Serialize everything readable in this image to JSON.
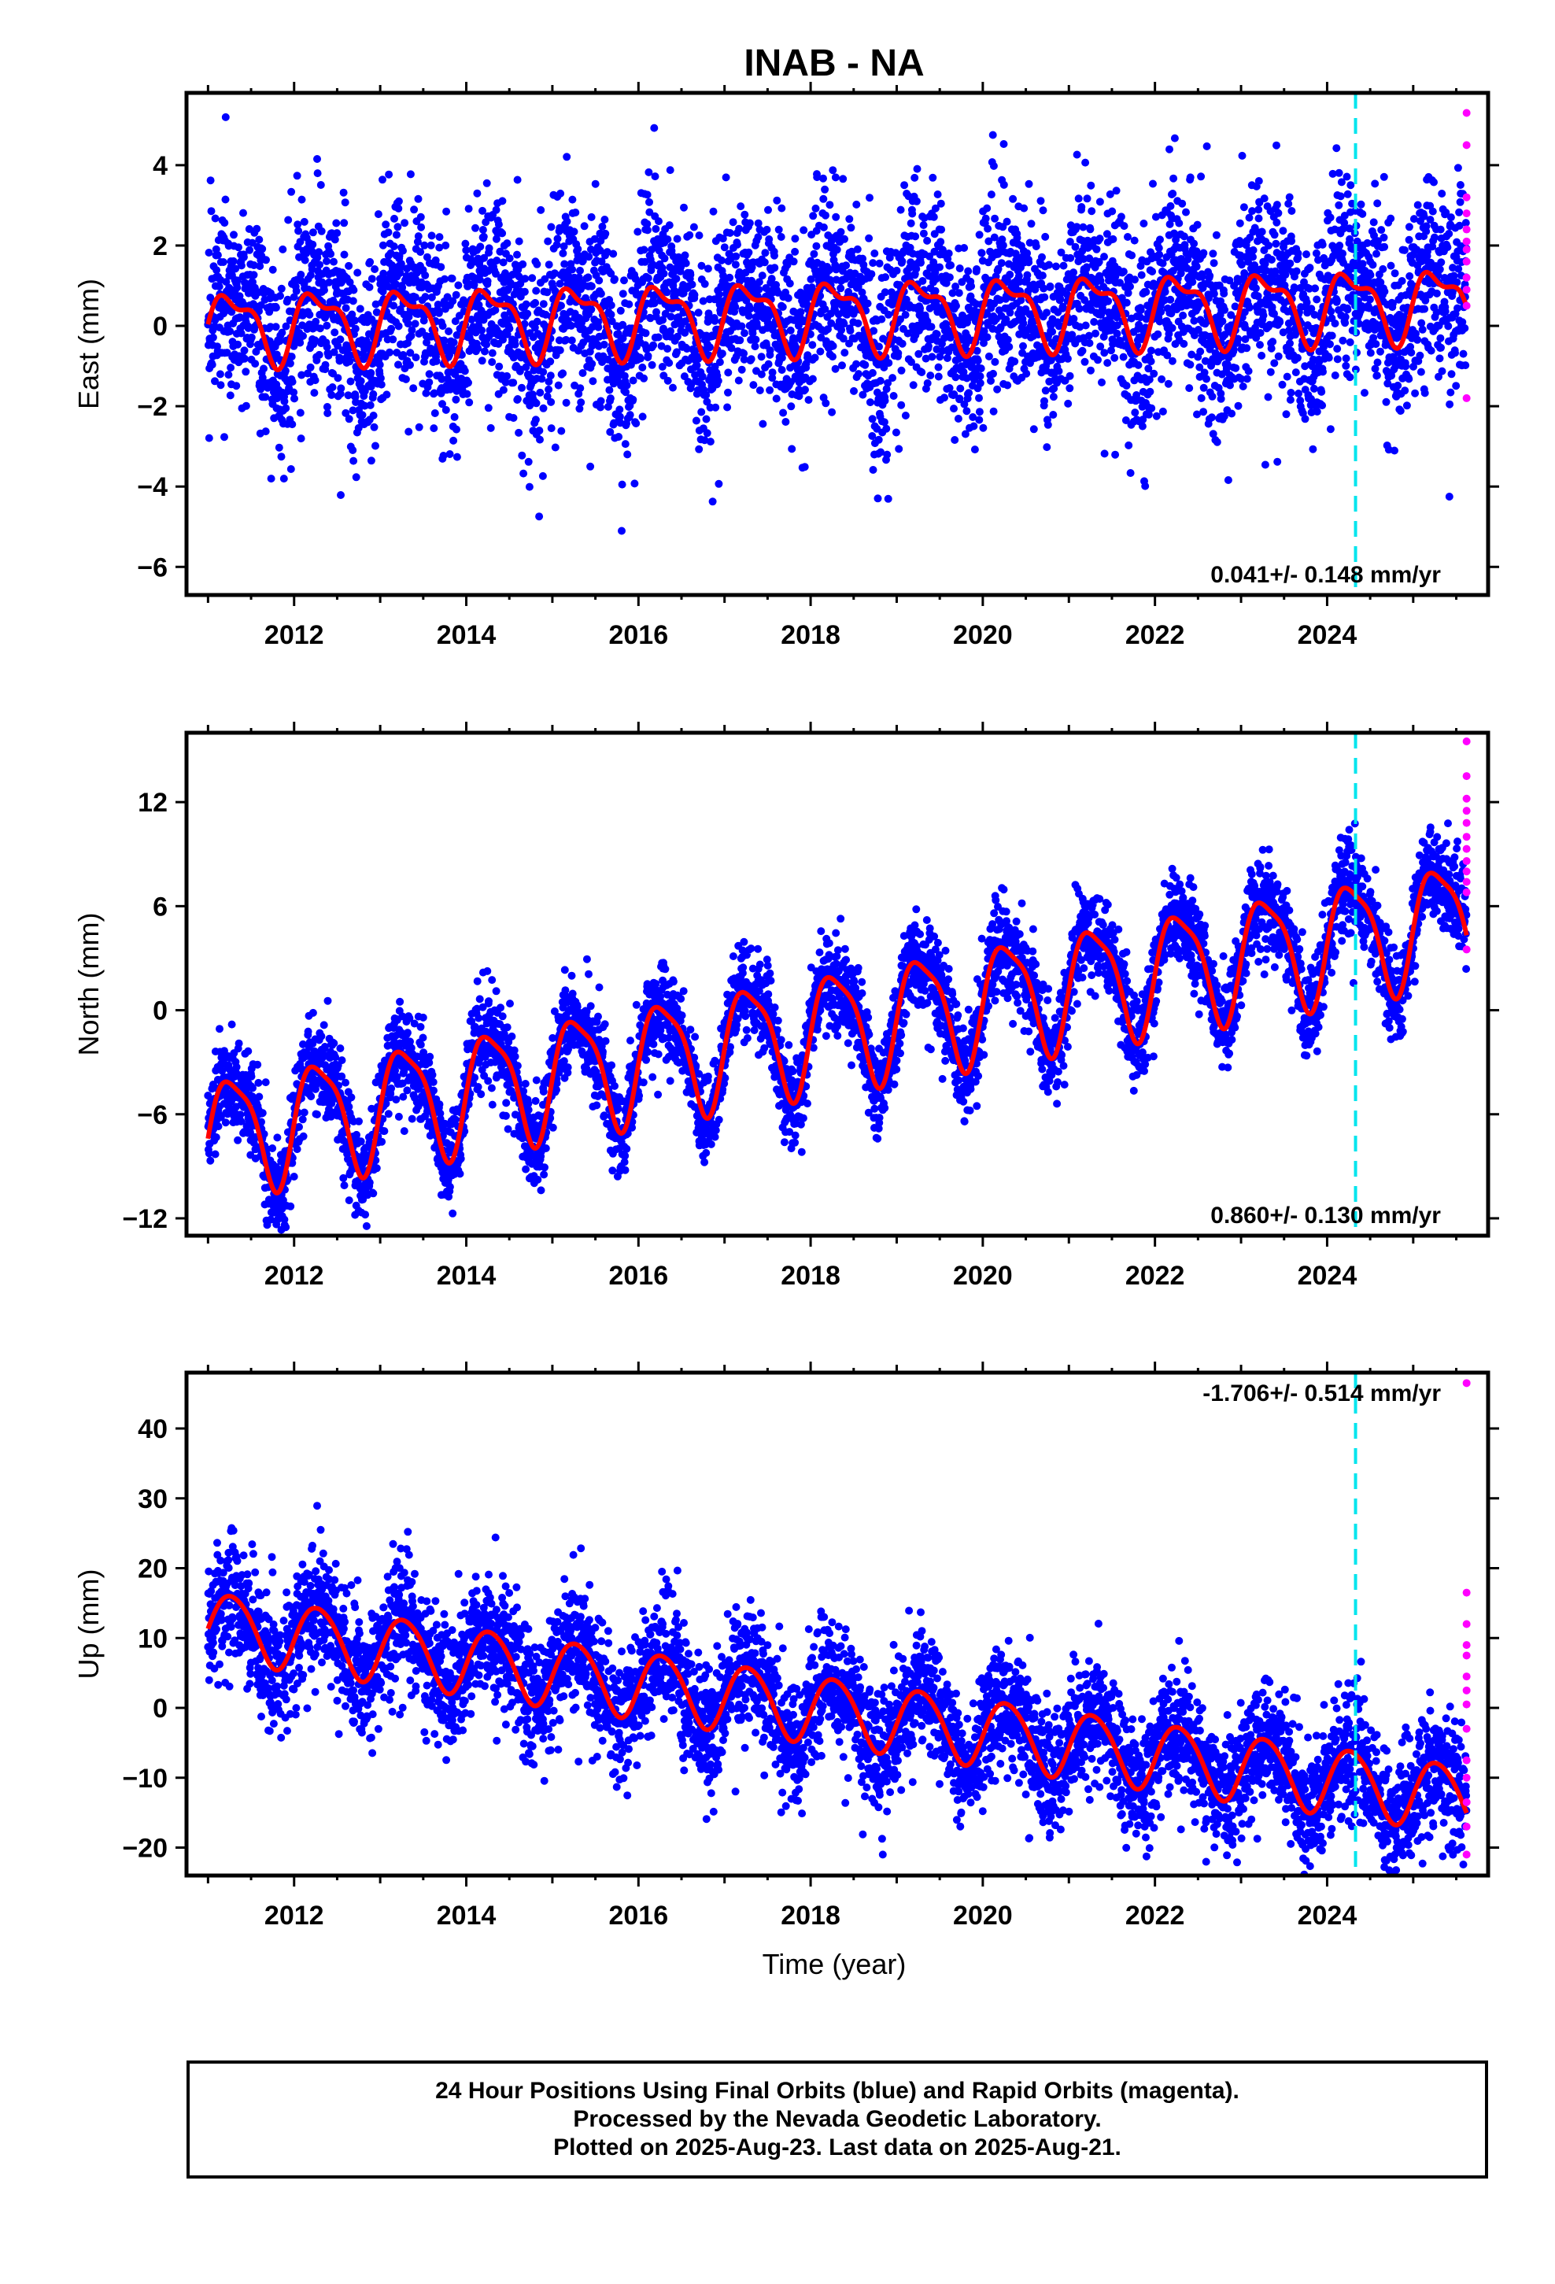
{
  "title": "INAB - NA",
  "colors": {
    "final_orbits": "#0000ff",
    "rapid_orbits": "#ff00ff",
    "model_fit": "#ff0000",
    "marker_line": "#00e5ee",
    "axes": "#000000"
  },
  "xlabel": "Time (year)",
  "footer": {
    "line1": "24 Hour Positions Using Final Orbits (blue) and Rapid Orbits (magenta).",
    "line2": "Processed by the Nevada Geodetic Laboratory.",
    "line3": "Plotted on 2025-Aug-23. Last data on 2025-Aug-21."
  },
  "chart_data": [
    {
      "type": "scatter",
      "component": "East",
      "ylabel": "East (mm)",
      "xlim": [
        2010.75,
        2025.87
      ],
      "ylim": [
        -6.7,
        5.8
      ],
      "xticks": [
        "2012",
        "2014",
        "2016",
        "2018",
        "2020",
        "2022",
        "2024"
      ],
      "yticks": [
        "4",
        "2",
        "0",
        "−2",
        "−4",
        "−6"
      ],
      "rate_label": "0.041+/- 0.148 mm/yr",
      "rate_mm_per_yr": 0.041,
      "rate_sigma": 0.148,
      "equipment_change_year": 2024.33,
      "grid": false,
      "series": [
        {
          "role": "final_orbits",
          "scatter_sd_mm": 1.2
        },
        {
          "role": "model_fit",
          "offset_mm": 0.0,
          "annual_amplitude_mm": 0.8,
          "semiannual_amplitude_mm": 0.35
        },
        {
          "role": "rapid_orbits",
          "y_values": [
            5.3,
            4.5,
            3.2,
            2.8,
            2.4,
            2.1,
            1.9,
            1.6,
            1.2,
            0.9,
            0.5,
            -1.8
          ]
        }
      ]
    },
    {
      "type": "scatter",
      "component": "North",
      "ylabel": "North (mm)",
      "xlim": [
        2010.75,
        2025.87
      ],
      "ylim": [
        -13,
        16
      ],
      "xticks": [
        "2012",
        "2014",
        "2016",
        "2018",
        "2020",
        "2022",
        "2024"
      ],
      "yticks": [
        "12",
        "6",
        "0",
        "−6",
        "−12"
      ],
      "rate_label": "0.860+/- 0.130 mm/yr",
      "rate_mm_per_yr": 0.86,
      "rate_sigma": 0.13,
      "equipment_change_year": 2024.33,
      "grid": false,
      "series": [
        {
          "role": "final_orbits",
          "scatter_sd_mm": 1.3
        },
        {
          "role": "model_fit",
          "value_at_2011_mm": -7.2,
          "annual_amplitude_mm": 3.3,
          "semiannual_amplitude_mm": 0.8
        },
        {
          "role": "rapid_orbits",
          "y_values": [
            15.5,
            13.5,
            12.2,
            11.5,
            10.8,
            10.0,
            9.3,
            8.6,
            8.0,
            7.4,
            6.8,
            3.5
          ]
        }
      ]
    },
    {
      "type": "scatter",
      "component": "Up",
      "ylabel": "Up (mm)",
      "xlim": [
        2010.75,
        2025.87
      ],
      "ylim": [
        -24,
        48
      ],
      "xticks": [
        "2012",
        "2014",
        "2016",
        "2018",
        "2020",
        "2022",
        "2024"
      ],
      "yticks": [
        "40",
        "30",
        "20",
        "10",
        "0",
        "−10",
        "−20"
      ],
      "rate_label": "-1.706+/- 0.514 mm/yr",
      "rate_mm_per_yr": -1.706,
      "rate_sigma": 0.514,
      "equipment_change_year": 2024.33,
      "grid": false,
      "series": [
        {
          "role": "final_orbits",
          "scatter_sd_mm": 4.5
        },
        {
          "role": "model_fit",
          "value_at_2011_mm": 12.0,
          "annual_amplitude_mm": 4.8,
          "semiannual_amplitude_mm": 0.5
        },
        {
          "role": "rapid_orbits",
          "y_values": [
            46.5,
            16.5,
            12.0,
            9.0,
            7.5,
            4.5,
            2.5,
            0.5,
            -3.0,
            -7.5,
            -10.0,
            -13.5,
            -17.0,
            -21.0
          ]
        }
      ]
    }
  ]
}
